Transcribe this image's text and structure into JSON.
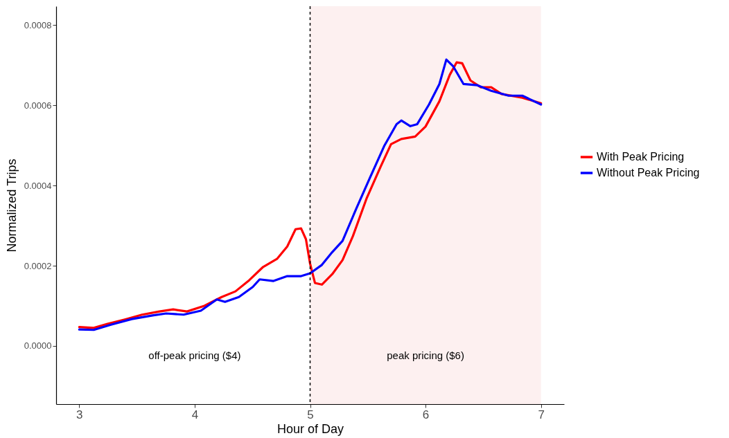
{
  "chart_data": {
    "type": "line",
    "xlabel": "Hour of Day",
    "ylabel": "Normalized Trips",
    "xlim": [
      2.8,
      7.2
    ],
    "ylim": [
      -0.000145,
      0.000847
    ],
    "xticks": [
      3,
      4,
      5,
      6,
      7
    ],
    "yticks": [
      {
        "value": 0,
        "label": "0.0000"
      },
      {
        "value": 0.0002,
        "label": "0.0002"
      },
      {
        "value": 0.0004,
        "label": "0.0004"
      },
      {
        "value": 0.0006,
        "label": "0.0006"
      },
      {
        "value": 0.0008,
        "label": "0.0008"
      }
    ],
    "grid": false,
    "legend": "right",
    "line_style": "solid",
    "marker": "none",
    "series": [
      {
        "name": "With Peak Pricing",
        "color": "#ff0000",
        "x": [
          3.0,
          3.126,
          3.245,
          3.395,
          3.545,
          3.695,
          3.814,
          3.934,
          4.084,
          4.234,
          4.353,
          4.473,
          4.593,
          4.713,
          4.802,
          4.874,
          4.922,
          4.964,
          5.0,
          5.042,
          5.102,
          5.192,
          5.281,
          5.371,
          5.491,
          5.611,
          5.701,
          5.79,
          5.91,
          6.0,
          6.12,
          6.21,
          6.269,
          6.317,
          6.389,
          6.479,
          6.569,
          6.659,
          6.838,
          7.0
        ],
        "values": [
          4.7e-05,
          4.5e-05,
          5.5e-05,
          6.6e-05,
          7.8e-05,
          8.6e-05,
          9.1e-05,
          8.6e-05,
          0.0001,
          0.000122,
          0.000136,
          0.000164,
          0.000197,
          0.000217,
          0.000248,
          0.000291,
          0.000293,
          0.000266,
          0.000205,
          0.000157,
          0.000153,
          0.000179,
          0.000214,
          0.000274,
          0.000369,
          0.000447,
          0.000503,
          0.000516,
          0.000522,
          0.000547,
          0.00061,
          0.000676,
          0.000707,
          0.000705,
          0.000662,
          0.000645,
          0.000645,
          0.000628,
          0.000619,
          0.000605
        ]
      },
      {
        "name": "Without Peak Pricing",
        "color": "#0000ff",
        "x": [
          3.0,
          3.126,
          3.275,
          3.455,
          3.635,
          3.754,
          3.904,
          4.054,
          4.192,
          4.263,
          4.383,
          4.503,
          4.563,
          4.683,
          4.802,
          4.922,
          5.0,
          5.102,
          5.192,
          5.281,
          5.401,
          5.521,
          5.641,
          5.749,
          5.79,
          5.868,
          5.928,
          6.03,
          6.12,
          6.18,
          6.24,
          6.329,
          6.449,
          6.569,
          6.719,
          6.838,
          7.0
        ],
        "values": [
          4.1e-05,
          4e-05,
          5.3e-05,
          6.7e-05,
          7.6e-05,
          8.1e-05,
          7.8e-05,
          8.8e-05,
          0.000116,
          0.00011,
          0.000122,
          0.000147,
          0.000166,
          0.000162,
          0.000174,
          0.000174,
          0.000181,
          0.000202,
          0.000234,
          0.000262,
          0.000343,
          0.000421,
          0.000498,
          0.000553,
          0.000562,
          0.000548,
          0.000553,
          0.000602,
          0.000653,
          0.000714,
          0.000697,
          0.000653,
          0.00065,
          0.000636,
          0.000624,
          0.000624,
          0.000602
        ]
      }
    ],
    "ref_lines": [
      {
        "axis": "x",
        "value": 5,
        "label": null,
        "line_style": "dashed",
        "color": "#000000"
      }
    ],
    "bands": [
      {
        "axis": "x",
        "from": 5,
        "to": 7,
        "label": null,
        "color": "#fdf0f0"
      }
    ],
    "annotations": [
      "off-peak pricing ($4)",
      "peak pricing ($6)"
    ]
  }
}
